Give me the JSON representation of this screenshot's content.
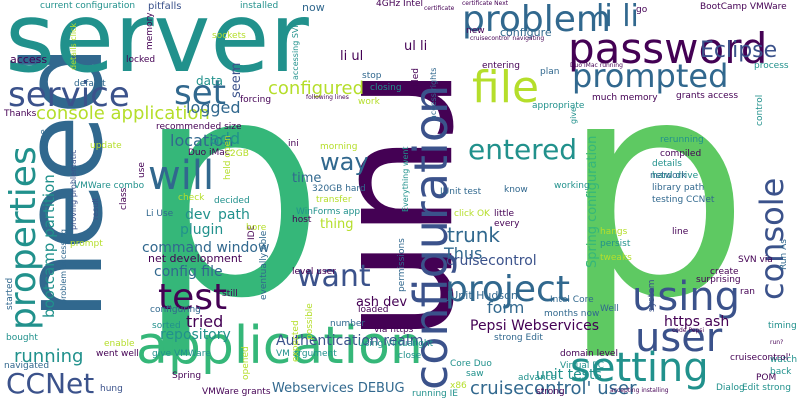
{
  "palette": {
    "background": "#ffffff",
    "purple": "#440154",
    "indigo": "#3b528b",
    "blue": "#31688e",
    "teal": "#21918c",
    "green": "#35b779",
    "lime": "#5ec962",
    "yellow": "#b5de2b"
  },
  "words": [
    "run",
    "p",
    "p",
    "need",
    "server",
    "application",
    "configuration",
    "password",
    "problem",
    "properties",
    "using",
    "user",
    "file",
    "service",
    "will",
    "setting",
    "project",
    "test",
    "prompted",
    "console",
    "entered",
    "want",
    "CCNet",
    "li li",
    "set",
    "console application",
    "Eclipse",
    "configured",
    "trunk",
    "running",
    "way",
    "cruisecontrol' user",
    "Authentication realm",
    "command window",
    "config file",
    "repository",
    "tried",
    "location",
    "bootcamp partition",
    "form",
    "Thus",
    "logged",
    "add",
    "dev",
    "path",
    "plugin",
    "cruisecontrol",
    "Spring configuration",
    "https ash",
    "Pepsi Webservices",
    "unit tests",
    "li ul",
    "ul li",
    "access",
    "data",
    "seem",
    "time",
    "thing",
    "Webservices DEBUG",
    "ash dev",
    "net development",
    "JUnit Hudson",
    "now",
    "configure",
    "installed",
    "pitfalls",
    "current configuration",
    "4GHz Intel",
    "BootCamp VMWare",
    "Intel Core",
    "Duo iMac",
    "VMWare combo",
    "WinForms app",
    "320GB hard",
    "hard drive",
    "library path",
    "testing CCNet",
    "grants access",
    "much memory",
    "JUnit test",
    "strong Edit",
    "Core Duo",
    "Virtual PC",
    "VM argument",
    "went well",
    "give VMWare",
    "VMWare grants",
    "domain level",
    "level user",
    "Edit strong",
    "watch",
    "back",
    "SVN via",
    "Run As",
    "timing",
    "surprising",
    "create",
    "system",
    "ran",
    "POM",
    "Dialog",
    "saw",
    "advance",
    "x86",
    "running IE",
    "close",
    "via https",
    "number",
    "loaded",
    "right",
    "Well",
    "months now",
    "tweaks",
    "hangs",
    "persist",
    "every",
    "little",
    "working",
    "know",
    "click OK",
    "details",
    "compiled",
    "network",
    "rerunning",
    "control",
    "process",
    "go",
    "plan",
    "entering",
    "killed",
    "closing",
    "stop",
    "work",
    "Thanks",
    "default",
    "locked",
    "memory",
    "update",
    "check",
    "decided",
    "recommended size",
    "2GB",
    "ini",
    "morning",
    "host",
    "IDE",
    "eventually able",
    "still",
    "enable",
    "opened",
    "Spring",
    "class",
    "prompt",
    "started",
    "bought",
    "navigated",
    "hung",
    "sorted",
    "configuring",
    "problem accessing",
    "Li Use",
    "proving problematic",
    "result",
    "forcing",
    "transfer",
    "bore",
    "held open",
    "use",
    "permissions",
    "expected",
    "possible",
    "new",
    "appropriate",
    "access rights",
    "accessing SVN",
    "following lines",
    "certificate",
    "certificate Next",
    "cruisecontrol' navigating",
    "Duo iMac running",
    "Everything went",
    "Using Virtual",
    "give",
    "one",
    "details click",
    "strong",
    "accepting installing",
    "code Pepsi",
    "cruisecontrol'",
    "sockets",
    "run?",
    "line"
  ]
}
